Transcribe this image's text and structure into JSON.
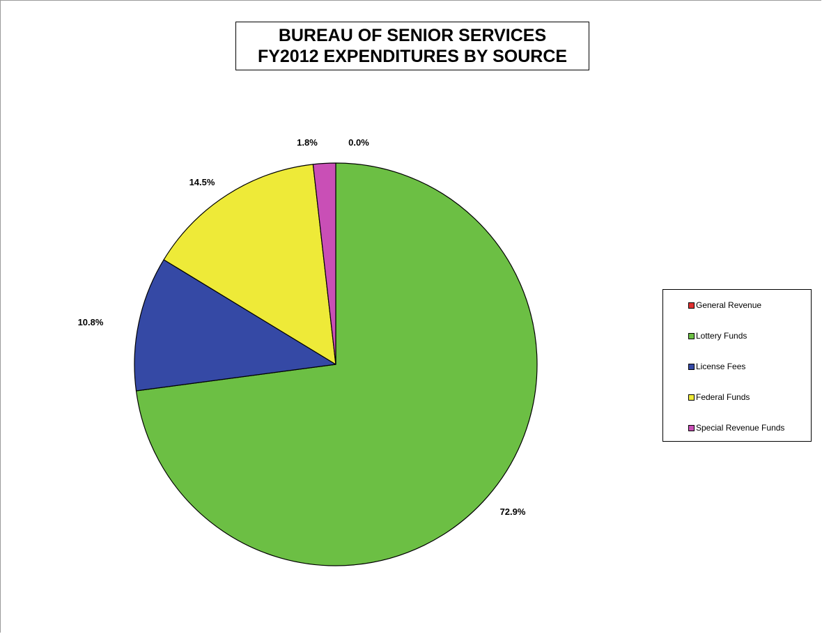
{
  "chart_data": {
    "type": "pie",
    "title": "BUREAU OF SENIOR SERVICES FY2012 EXPENDITURES BY SOURCE",
    "title_lines": [
      "BUREAU OF SENIOR SERVICES",
      "FY2012 EXPENDITURES BY SOURCE"
    ],
    "categories": [
      "General Revenue",
      "Lottery Funds",
      "License Fees",
      "Federal Funds",
      "Special Revenue Funds"
    ],
    "values": [
      0.0,
      72.9,
      10.8,
      14.5,
      1.8
    ],
    "data_labels": [
      "0.0%",
      "72.9%",
      "10.8%",
      "14.5%",
      "1.8%"
    ],
    "colors": [
      "#e03030",
      "#6cbf44",
      "#3549a5",
      "#eeea38",
      "#c94fb6"
    ],
    "start_angle": "12 o'clock, clockwise",
    "legend_position": "right"
  }
}
